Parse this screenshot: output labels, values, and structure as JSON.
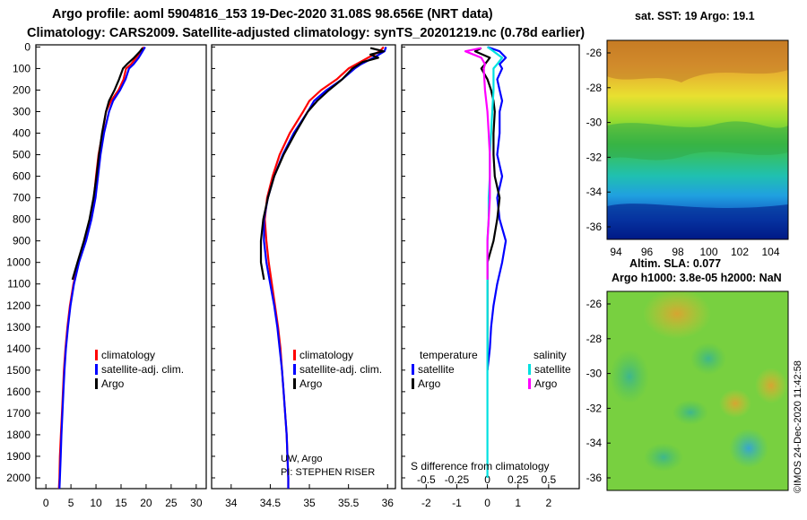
{
  "title_line1": "Argo profile: aoml 5904816_153 19-Dec-2020 31.08S 98.656E (NRT data)",
  "title_line2": "Climatology: CARS2009. Satellite-adjusted climatology: synTS_20201219.nc (0.78d earlier)",
  "colors": {
    "climatology": "#ff0000",
    "satellite": "#0000ff",
    "argo": "#000000",
    "satellite_s": "#00e0e0",
    "argo_s": "#ff00ff"
  },
  "chart_data": [
    {
      "type": "line",
      "name": "temperature-profile",
      "xlim": [
        -2,
        32
      ],
      "ylim": [
        2050,
        -10
      ],
      "xticks": [
        "0",
        "5",
        "10",
        "15",
        "20",
        "25",
        "30"
      ],
      "yticks": [
        "0",
        "100",
        "200",
        "300",
        "400",
        "500",
        "600",
        "700",
        "800",
        "900",
        "1000",
        "1100",
        "1200",
        "1300",
        "1400",
        "1500",
        "1600",
        "1700",
        "1800",
        "1900",
        "2000"
      ],
      "legend": [
        "climatology",
        "satellite-adj. clim.",
        "Argo"
      ],
      "series": [
        {
          "name": "climatology",
          "color": "#ff0000",
          "x": [
            19.5,
            19,
            18,
            17,
            16,
            15.5,
            14.5,
            13,
            12,
            11.3,
            10.5,
            10,
            9.6,
            8.8,
            7.8,
            6.5,
            5.5,
            4.8,
            4.3,
            3.9,
            3.6,
            3.4,
            3.2,
            3.0,
            2.8,
            2.7,
            2.6
          ],
          "y": [
            0,
            20,
            50,
            80,
            100,
            150,
            200,
            250,
            300,
            400,
            500,
            600,
            700,
            800,
            900,
            1000,
            1100,
            1200,
            1300,
            1400,
            1500,
            1600,
            1700,
            1800,
            1900,
            2000,
            2050
          ]
        },
        {
          "name": "satellite-adj. clim.",
          "color": "#0000ff",
          "x": [
            19.8,
            19.3,
            18.5,
            17.5,
            16.6,
            15.9,
            14.8,
            13.4,
            12.6,
            11.6,
            10.9,
            10.4,
            9.9,
            9.1,
            8.0,
            6.6,
            5.6,
            4.9,
            4.4,
            4.0,
            3.7,
            3.5,
            3.3,
            3.1,
            2.95,
            2.8,
            2.7
          ],
          "y": [
            0,
            20,
            50,
            80,
            100,
            150,
            200,
            250,
            300,
            400,
            500,
            600,
            700,
            800,
            900,
            1000,
            1100,
            1200,
            1300,
            1400,
            1500,
            1600,
            1700,
            1800,
            1900,
            2000,
            2050
          ]
        },
        {
          "name": "Argo",
          "color": "#000000",
          "x": [
            19.3,
            18.8,
            17.6,
            16.2,
            15.4,
            14.6,
            13.7,
            12.6,
            12.0,
            11.2,
            10.6,
            10.1,
            9.5,
            8.7,
            7.6,
            6.3,
            5.3
          ],
          "y": [
            5,
            20,
            50,
            80,
            100,
            150,
            200,
            250,
            300,
            400,
            500,
            600,
            700,
            800,
            900,
            1000,
            1080
          ]
        }
      ]
    },
    {
      "type": "line",
      "name": "salinity-profile",
      "xlim": [
        33.75,
        36.1
      ],
      "ylim": [
        2050,
        -10
      ],
      "xticks": [
        "34",
        "34.5",
        "35",
        "35.5",
        "36"
      ],
      "legend": [
        "climatology",
        "satellite-adj. clim.",
        "Argo"
      ],
      "series": [
        {
          "name": "climatology",
          "color": "#ff0000",
          "x": [
            35.95,
            35.9,
            35.75,
            35.6,
            35.5,
            35.35,
            35.15,
            35.0,
            34.92,
            34.75,
            34.62,
            34.53,
            34.46,
            34.43,
            34.45,
            34.48,
            34.52,
            34.56,
            34.6,
            34.63,
            34.65,
            34.67,
            34.69,
            34.71,
            34.72,
            34.73,
            34.73
          ],
          "y": [
            0,
            20,
            50,
            80,
            100,
            150,
            200,
            250,
            300,
            400,
            500,
            600,
            700,
            800,
            900,
            1000,
            1100,
            1200,
            1300,
            1400,
            1500,
            1600,
            1700,
            1800,
            1900,
            2000,
            2050
          ]
        },
        {
          "name": "satellite-adj. clim.",
          "color": "#0000ff",
          "x": [
            35.98,
            35.96,
            35.82,
            35.66,
            35.58,
            35.42,
            35.22,
            35.06,
            34.98,
            34.8,
            34.66,
            34.55,
            34.47,
            34.42,
            34.42,
            34.45,
            34.5,
            34.55,
            34.59,
            34.62,
            34.65,
            34.67,
            34.69,
            34.71,
            34.72,
            34.73,
            34.73
          ],
          "y": [
            0,
            20,
            50,
            80,
            100,
            150,
            200,
            250,
            300,
            400,
            500,
            600,
            700,
            800,
            900,
            1000,
            1100,
            1200,
            1300,
            1400,
            1500,
            1600,
            1700,
            1800,
            1900,
            2000,
            2050
          ]
        },
        {
          "name": "Argo",
          "color": "#000000",
          "x": [
            35.78,
            35.95,
            35.78,
            35.88,
            35.68,
            35.55,
            35.42,
            35.25,
            35.1,
            34.98,
            34.82,
            34.67,
            34.55,
            34.47,
            34.41,
            34.38,
            34.38,
            34.42
          ],
          "y": [
            5,
            20,
            35,
            50,
            70,
            100,
            150,
            200,
            250,
            300,
            400,
            500,
            600,
            700,
            800,
            900,
            1000,
            1080
          ]
        }
      ]
    },
    {
      "type": "line",
      "name": "difference-profile",
      "xlim": [
        -0.7,
        0.75
      ],
      "ylim": [
        2050,
        -10
      ],
      "xticks": [
        "-0.5",
        "-0.25",
        "0",
        "0.25",
        "0.5"
      ],
      "xticks_lower": [
        "-2",
        "-1",
        "0",
        "1",
        "2"
      ],
      "xlabel": "S difference from climatology",
      "legend_groups": {
        "temperature": [
          "satellite",
          "Argo"
        ],
        "salinity": [
          "satellite",
          "Argo"
        ]
      },
      "series": [
        {
          "name": "temperature satellite",
          "color": "#0000ff",
          "x": [
            0.0,
            0.1,
            0.15,
            0.1,
            0.12,
            0.08,
            0.1,
            0.12,
            0.1,
            0.1,
            0.08,
            0.12,
            0.08,
            0.1,
            0.15,
            0.12,
            0.08,
            0.05,
            0.03,
            0.02,
            0.0
          ],
          "y": [
            0,
            20,
            50,
            80,
            100,
            150,
            200,
            250,
            300,
            400,
            500,
            600,
            700,
            800,
            900,
            1000,
            1100,
            1200,
            1300,
            1400,
            1500
          ]
        },
        {
          "name": "temperature Argo",
          "color": "#000000",
          "x": [
            -0.05,
            -0.1,
            0.02,
            -0.02,
            -0.05,
            0.0,
            0.03,
            0.05,
            0.06,
            0.05,
            0.05,
            0.06,
            0.1,
            0.08,
            0.05,
            0.0,
            0.0,
            0.0
          ],
          "y": [
            5,
            20,
            50,
            80,
            100,
            150,
            200,
            250,
            300,
            400,
            500,
            600,
            700,
            800,
            900,
            1000,
            1080,
            1500
          ]
        },
        {
          "name": "salinity satellite",
          "color": "#00e0e0",
          "x": [
            0.0,
            0.05,
            0.12,
            0.08,
            0.05,
            0.05,
            0.04,
            0.03,
            0.02,
            0.02,
            0.01,
            0.01,
            0.0,
            0.0,
            0.0,
            0.0,
            0.0
          ],
          "y": [
            0,
            20,
            50,
            80,
            100,
            200,
            300,
            400,
            500,
            600,
            700,
            800,
            900,
            1000,
            1200,
            1600,
            2000
          ]
        },
        {
          "name": "salinity Argo",
          "color": "#ff00ff",
          "x": [
            -0.05,
            -0.18,
            -0.05,
            -0.02,
            -0.03,
            -0.02,
            0.0,
            0.01,
            0.02,
            0.02,
            0.02,
            0.01,
            0.0,
            0.0,
            0.0
          ],
          "y": [
            5,
            20,
            50,
            80,
            100,
            200,
            300,
            400,
            500,
            600,
            700,
            800,
            900,
            1000,
            1080
          ]
        }
      ]
    }
  ],
  "sst_map": {
    "title": "sat. SST: 19 Argo: 19.1",
    "xticks": [
      "94",
      "96",
      "98",
      "100",
      "102",
      "104"
    ],
    "yticks": [
      "-26",
      "-28",
      "-30",
      "-32",
      "-34",
      "-36"
    ]
  },
  "sla_map": {
    "title_line1": "Altim. SLA: 0.077",
    "title_line2": "Argo h1000: 3.8e-05 h2000: NaN",
    "yticks": [
      "-26",
      "-28",
      "-30",
      "-32",
      "-34",
      "-36"
    ]
  },
  "annotations": {
    "operator": "UW, Argo",
    "pi": "PI: STEPHEN RISER",
    "stamp": "©IMOS 24-Dec-2020 11:42:58"
  },
  "legend": {
    "clim": "climatology",
    "sat": "satellite-adj. clim.",
    "sat2": "satellite-adj. clim.",
    "argo": "Argo",
    "temperature": "temperature",
    "salinity": "salinity",
    "satellite": "satellite"
  }
}
